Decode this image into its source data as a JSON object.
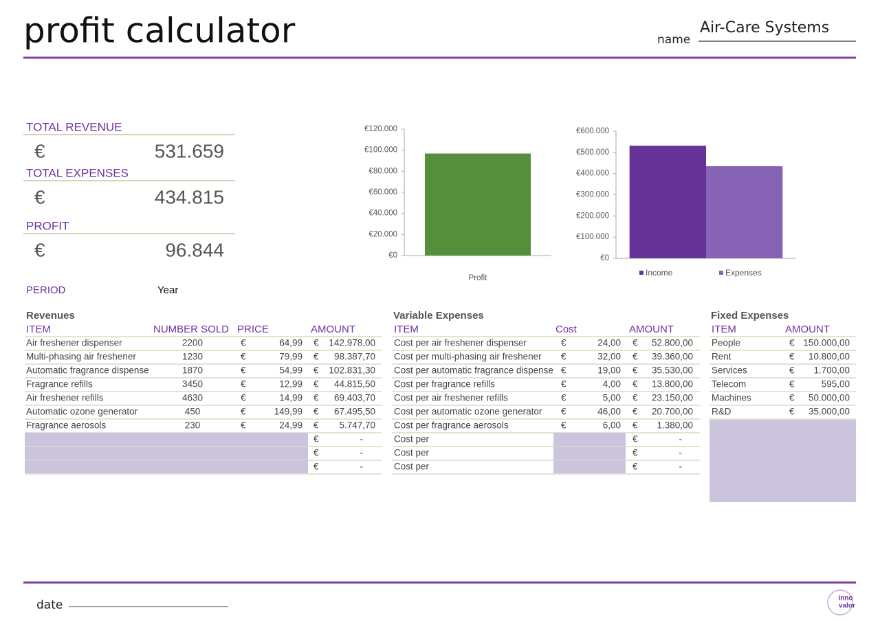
{
  "header": {
    "title": "profit calculator",
    "name_label": "name",
    "name": "Air-Care Systems"
  },
  "summary": {
    "items": [
      {
        "label": "TOTAL REVENUE",
        "currency": "€",
        "value": "531.659"
      },
      {
        "label": "TOTAL EXPENSES",
        "currency": "€",
        "value": "434.815"
      },
      {
        "label": "PROFIT",
        "currency": "€",
        "value": "96.844"
      }
    ],
    "period_label": "PERIOD",
    "period": "Year"
  },
  "chart_data": [
    {
      "type": "bar",
      "categories": [
        "Profit"
      ],
      "values": [
        96844
      ],
      "color": "#568f3c",
      "ylim": [
        0,
        120000
      ],
      "yticks": [
        {
          "value": 0,
          "label": "€0"
        },
        {
          "value": 20000,
          "label": "€20.000"
        },
        {
          "value": 40000,
          "label": "€40.000"
        },
        {
          "value": 60000,
          "label": "€60.000"
        },
        {
          "value": 80000,
          "label": "€80.000"
        },
        {
          "value": 100000,
          "label": "€100.000"
        },
        {
          "value": 120000,
          "label": "€120.000"
        }
      ]
    },
    {
      "type": "bar",
      "categories": [
        null
      ],
      "series": [
        {
          "name": "Income",
          "color": "#663399",
          "values": [
            531659
          ]
        },
        {
          "name": "Expenses",
          "color": "#8763b5",
          "values": [
            434815
          ]
        }
      ],
      "ylim": [
        0,
        600000
      ],
      "yticks": [
        {
          "value": 0,
          "label": "€0"
        },
        {
          "value": 100000,
          "label": "€100.000"
        },
        {
          "value": 200000,
          "label": "€200.000"
        },
        {
          "value": 300000,
          "label": "€300.000"
        },
        {
          "value": 400000,
          "label": "€400.000"
        },
        {
          "value": 500000,
          "label": "€500.000"
        },
        {
          "value": 600000,
          "label": "€600.000"
        }
      ],
      "legend": "bottom"
    }
  ],
  "tables": {
    "revenues": {
      "title": "Revenues",
      "columns": [
        "ITEM",
        "NUMBER SOLD",
        "PRICE",
        "AMOUNT"
      ],
      "rows": [
        [
          "Air freshener dispenser",
          "2200",
          "€",
          "64,99",
          "€",
          "142.978,00"
        ],
        [
          "Multi-phasing air freshener",
          "1230",
          "€",
          "79,99",
          "€",
          "98.387,70"
        ],
        [
          "Automatic fragrance dispense",
          "1870",
          "€",
          "54,99",
          "€",
          "102.831,30"
        ],
        [
          "Fragrance refills",
          "3450",
          "€",
          "12,99",
          "€",
          "44.815,50"
        ],
        [
          "Air freshener refills",
          "4630",
          "€",
          "14,99",
          "€",
          "69.403,70"
        ],
        [
          "Automatic ozone generator",
          "450",
          "€",
          "149,99",
          "€",
          "67.495,50"
        ],
        [
          "Fragrance aerosols",
          "230",
          "€",
          "24,99",
          "€",
          "5.747,70"
        ]
      ],
      "blank_rows": [
        [
          "€",
          "-"
        ],
        [
          "€",
          "-"
        ],
        [
          "€",
          "-"
        ]
      ]
    },
    "variable": {
      "title": "Variable Expenses",
      "columns": [
        "ITEM",
        "Cost",
        "AMOUNT"
      ],
      "rows": [
        [
          "Cost per air freshener dispenser",
          "€",
          "24,00",
          "€",
          "52.800,00"
        ],
        [
          "Cost per multi-phasing air freshener",
          "€",
          "32,00",
          "€",
          "39.360,00"
        ],
        [
          "Cost per automatic fragrance dispense",
          "€",
          "19,00",
          "€",
          "35.530,00"
        ],
        [
          "Cost per fragrance refills",
          "€",
          "4,00",
          "€",
          "13.800,00"
        ],
        [
          "Cost per air freshener refills",
          "€",
          "5,00",
          "€",
          "23.150,00"
        ],
        [
          "Cost per automatic ozone generator",
          "€",
          "46,00",
          "€",
          "20.700,00"
        ],
        [
          "Cost per fragrance aerosols",
          "€",
          "6,00",
          "€",
          "1.380,00"
        ]
      ],
      "blank_rows": [
        [
          "Cost per",
          "€",
          "-"
        ],
        [
          "Cost per",
          "€",
          "-"
        ],
        [
          "Cost per",
          "€",
          "-"
        ]
      ]
    },
    "fixed": {
      "title": "Fixed Expenses",
      "columns": [
        "ITEM",
        "AMOUNT"
      ],
      "rows": [
        [
          "People",
          "€",
          "150.000,00"
        ],
        [
          "Rent",
          "€",
          "10.800,00"
        ],
        [
          "Services",
          "€",
          "1.700,00"
        ],
        [
          "Telecom",
          "€",
          "595,00"
        ],
        [
          "Machines",
          "€",
          "50.000,00"
        ],
        [
          "R&D",
          "€",
          "35.000,00"
        ]
      ]
    }
  },
  "footer": {
    "date_label": "date",
    "logo": [
      "inno",
      "valor"
    ]
  }
}
